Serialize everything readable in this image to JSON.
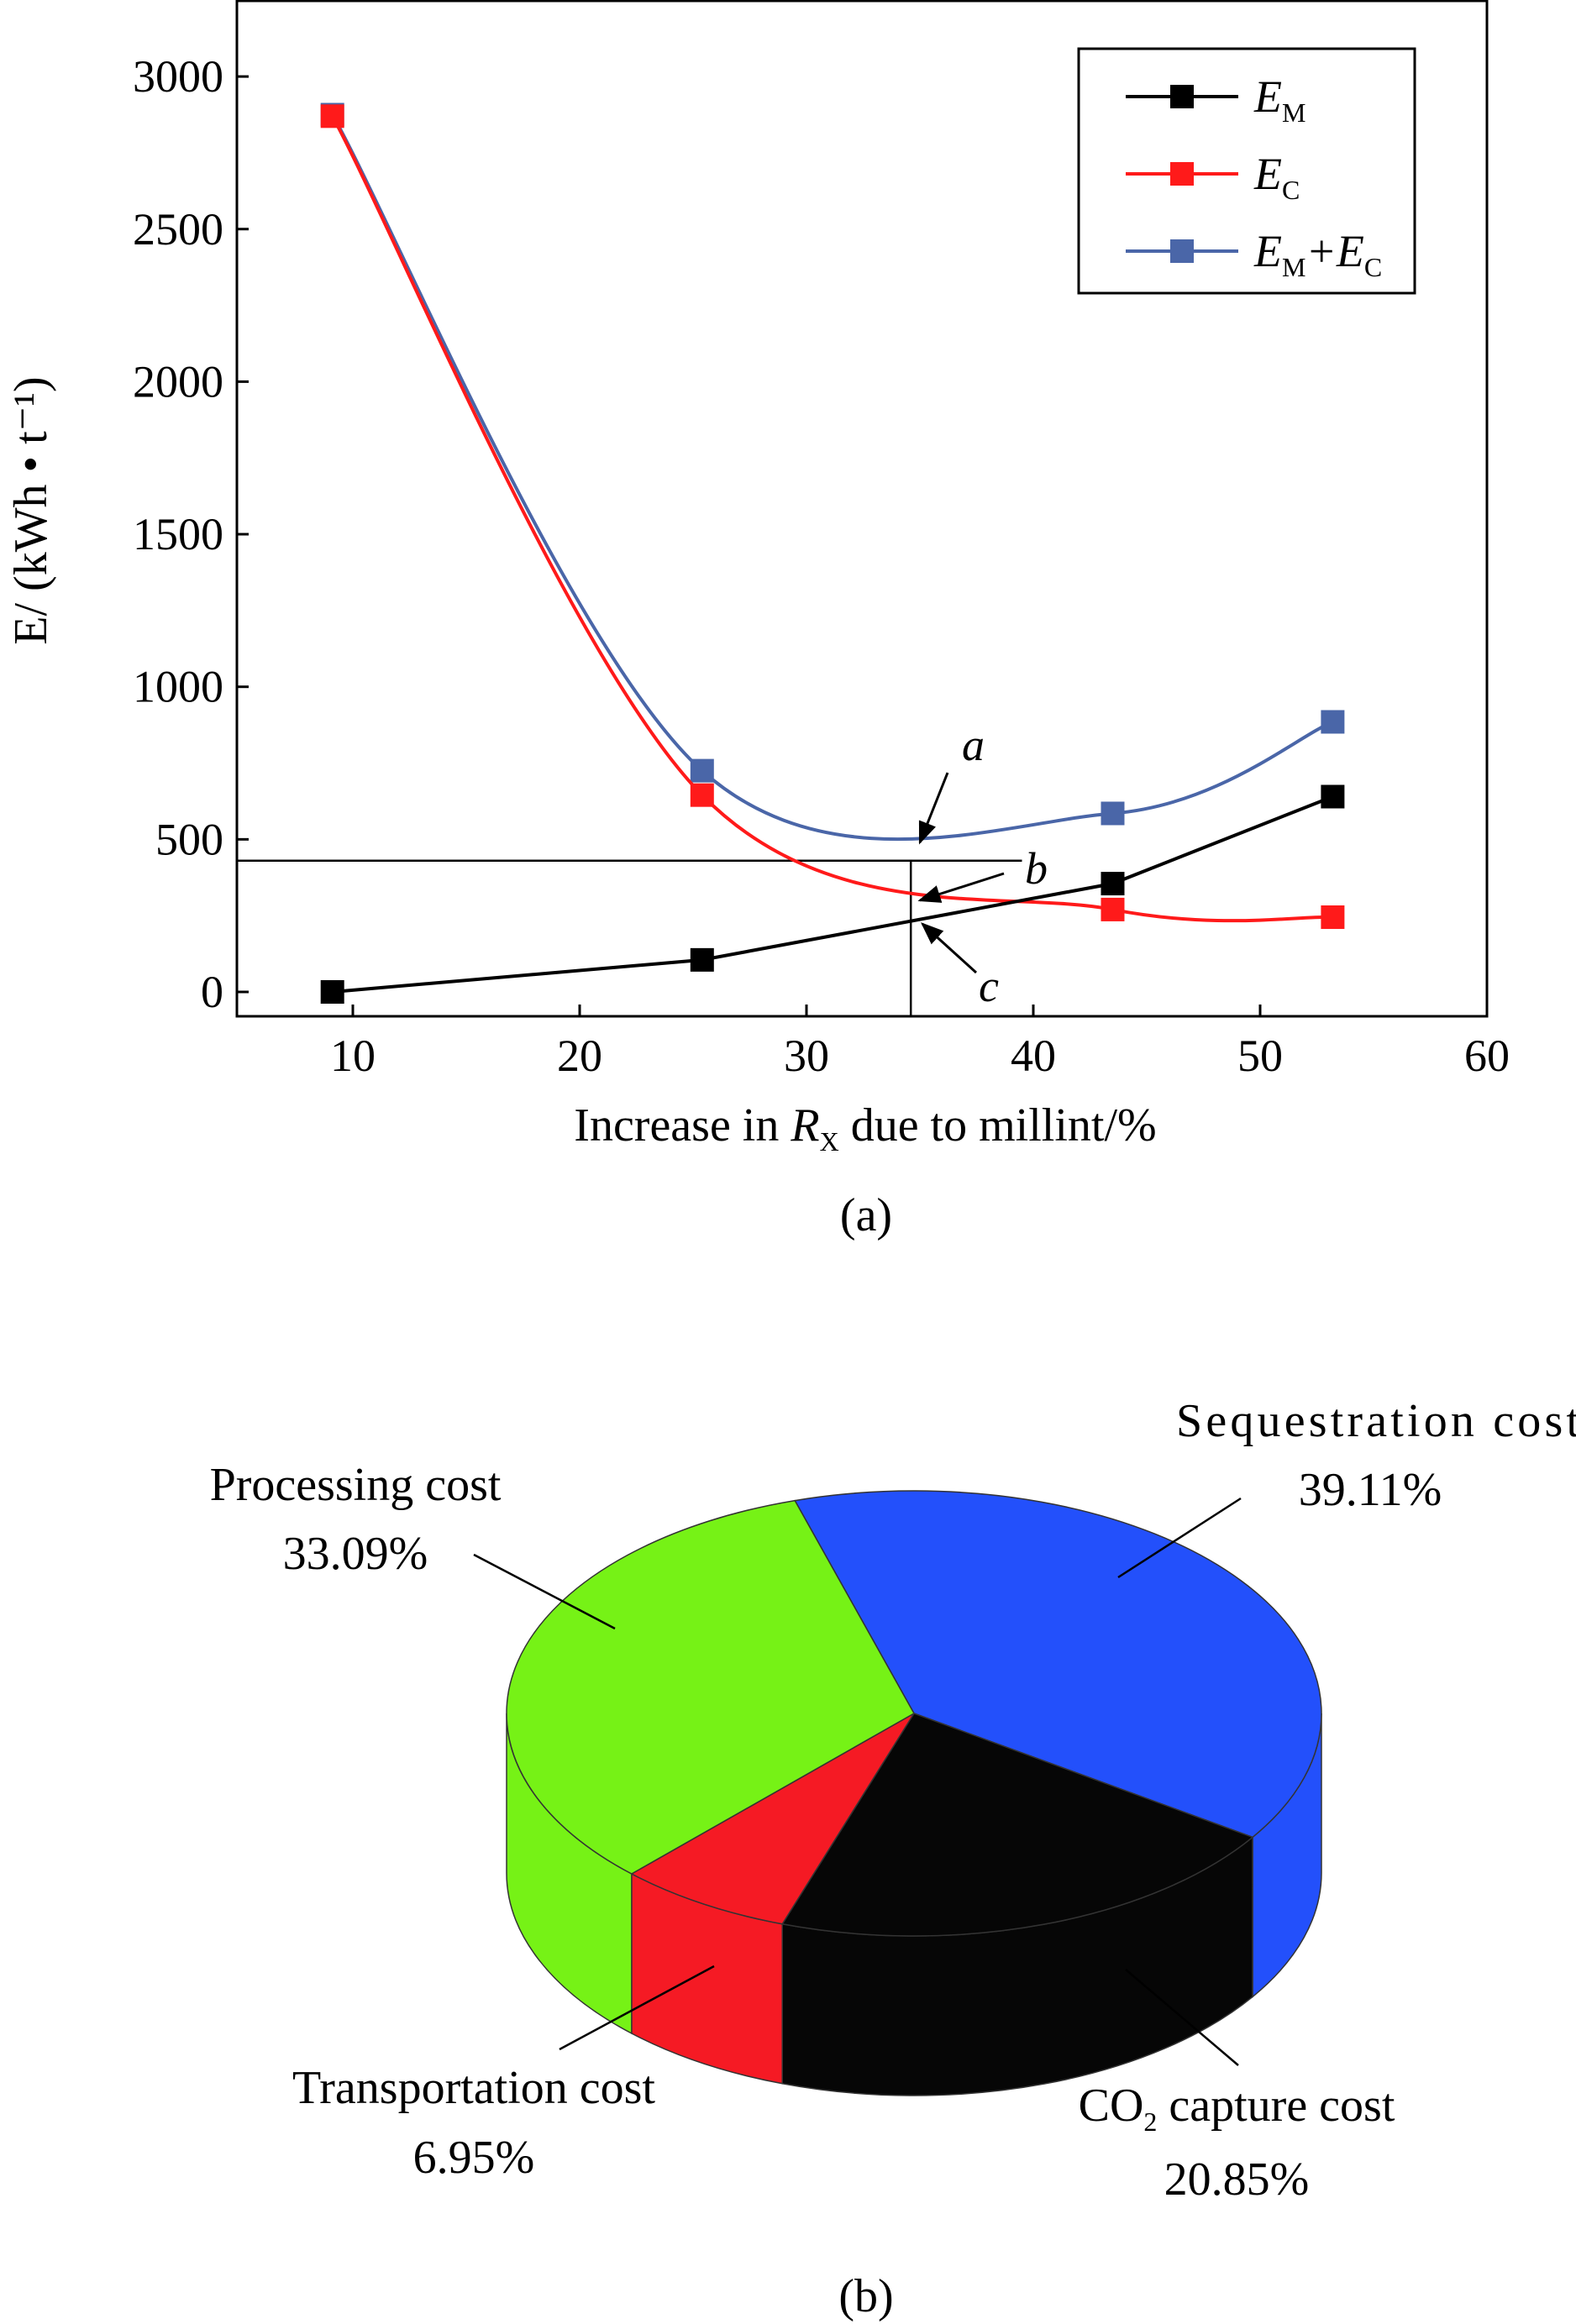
{
  "chart_data": [
    {
      "type": "line",
      "panel_label": "(a)",
      "xlabel": "Increase in R_X due to millint/%",
      "ylabel": "E/ (kWh • t⁻¹)",
      "xlim": [
        5,
        60
      ],
      "ylim": [
        -150,
        3250
      ],
      "xticks": [
        10,
        20,
        30,
        40,
        50,
        60
      ],
      "yticks": [
        0,
        500,
        1000,
        1500,
        2000,
        2500,
        3000
      ],
      "x": [
        9.1,
        25.4,
        43.5,
        53.2
      ],
      "series": [
        {
          "name": "E_M",
          "color": "#000000",
          "smooth": false,
          "values": [
            0,
            105,
            355,
            640
          ]
        },
        {
          "name": "E_C",
          "color": "#ff1a1a",
          "smooth": true,
          "values": [
            2870,
            645,
            270,
            245
          ]
        },
        {
          "name": "E_M+E_C",
          "color": "#4a66a8",
          "smooth": true,
          "values": [
            2875,
            725,
            585,
            885
          ]
        }
      ],
      "legend_position": "top-right",
      "reference_lines": {
        "horizontal_y": 430,
        "vertical_x": 34.6
      },
      "annotations": [
        "a",
        "b",
        "c"
      ]
    },
    {
      "type": "pie",
      "panel_label": "(b)",
      "slices": [
        {
          "label": "Sequestration cost",
          "value_text": "39.11%",
          "value": 39.11,
          "color": "#2350fb"
        },
        {
          "label": "CO_2 capture cost",
          "value_text": "20.85%",
          "value": 20.85,
          "color": "#060606"
        },
        {
          "label": "Transportation cost",
          "value_text": "6.95%",
          "value": 6.95,
          "color": "#f51a24"
        },
        {
          "label": "Processing cost",
          "value_text": "33.09%",
          "value": 33.09,
          "color": "#76f216"
        }
      ]
    }
  ]
}
